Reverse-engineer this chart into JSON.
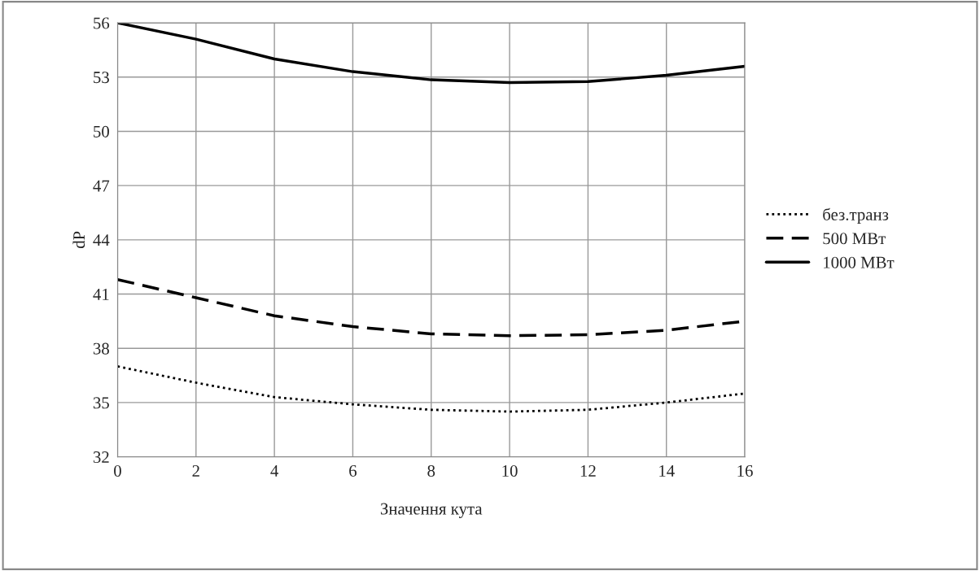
{
  "chart_data": {
    "type": "line",
    "xlabel": "Значення кута",
    "ylabel": "dP",
    "x": [
      0,
      2,
      4,
      6,
      8,
      10,
      12,
      14,
      16
    ],
    "series": [
      {
        "name": "без.транз",
        "color": "#000000",
        "line_style": "dotted",
        "values": [
          37.0,
          36.1,
          35.3,
          34.9,
          34.6,
          34.5,
          34.6,
          35.0,
          35.5
        ]
      },
      {
        "name": "500 МВт",
        "color": "#000000",
        "line_style": "dashed",
        "values": [
          41.8,
          40.8,
          39.8,
          39.2,
          38.8,
          38.7,
          38.75,
          39.0,
          39.5
        ]
      },
      {
        "name": "1000 МВт",
        "color": "#000000",
        "line_style": "solid",
        "values": [
          56.0,
          55.1,
          54.0,
          53.3,
          52.85,
          52.7,
          52.75,
          53.1,
          53.6
        ]
      }
    ],
    "xlim": [
      0,
      16
    ],
    "xticks": [
      0,
      2,
      4,
      6,
      8,
      10,
      12,
      14,
      16
    ],
    "ylim": [
      32,
      56
    ],
    "yticks": [
      32,
      35,
      38,
      41,
      44,
      47,
      50,
      53,
      56
    ],
    "grid": true,
    "legend": "right",
    "marker": "none"
  }
}
